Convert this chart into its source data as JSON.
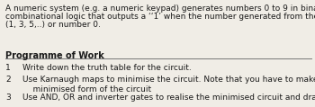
{
  "bg_color": "#f0ede6",
  "intro_lines": [
    "A numeric system (e.g. a numeric keypad) generates numbers 0 to 9 in binary. You are asked to design",
    "combinational logic that outputs a ‘‘1’ when the number generated from the numeric system is an odd number",
    "(1, 3, 5,..) or number 0."
  ],
  "section_title": "Programme of Work",
  "items": [
    {
      "num": "1",
      "text": "Write down the truth table for the circuit."
    },
    {
      "num": "2",
      "text": "Use Karnaugh maps to minimise the circuit. Note that you have to make use of any “don’t care” states to get the\n    minimised form of the circuit"
    },
    {
      "num": "3",
      "text": "Use AND, OR and inverter gates to realise the minimised circuit and draw the schematic of the circuit."
    }
  ],
  "intro_fontsize": 6.5,
  "section_fontsize": 7.0,
  "item_fontsize": 6.5,
  "text_color": "#1a1a1a",
  "line_color": "#777777"
}
